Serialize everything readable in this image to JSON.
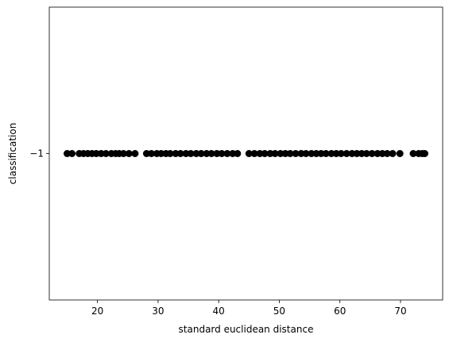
{
  "chart_data": {
    "type": "scatter",
    "title": "",
    "xlabel": "standard euclidean distance",
    "ylabel": "classification",
    "xlim": [
      12.05,
      76.95
    ],
    "ylim": [
      -1.055,
      -0.945
    ],
    "xticks": [
      20,
      30,
      40,
      50,
      60,
      70
    ],
    "xtick_labels": [
      "20",
      "30",
      "40",
      "50",
      "60",
      "70"
    ],
    "yticks": [
      -1
    ],
    "ytick_labels": [
      "−1"
    ],
    "grid": false,
    "legend": null,
    "marker_color": "#000000",
    "series": [
      {
        "x": [
          15.0,
          15.8,
          17.0,
          17.7,
          18.4,
          19.1,
          19.8,
          20.6,
          21.4,
          22.3,
          23.0,
          23.6,
          24.3,
          25.2,
          26.2,
          28.1,
          28.9,
          29.8,
          30.5,
          31.3,
          32.0,
          32.9,
          33.7,
          34.6,
          35.4,
          36.3,
          37.1,
          38.0,
          38.8,
          39.7,
          40.5,
          41.4,
          42.3,
          43.1,
          45.0,
          45.9,
          46.8,
          47.6,
          48.5,
          49.3,
          50.2,
          51.0,
          51.8,
          52.7,
          53.6,
          54.4,
          55.3,
          56.1,
          56.9,
          57.7,
          58.6,
          59.4,
          60.2,
          61.1,
          62.0,
          62.8,
          63.6,
          64.4,
          65.3,
          66.2,
          67.0,
          67.8,
          68.7,
          69.9,
          72.1,
          73.0,
          73.6,
          74.0
        ],
        "y": -1
      }
    ]
  }
}
